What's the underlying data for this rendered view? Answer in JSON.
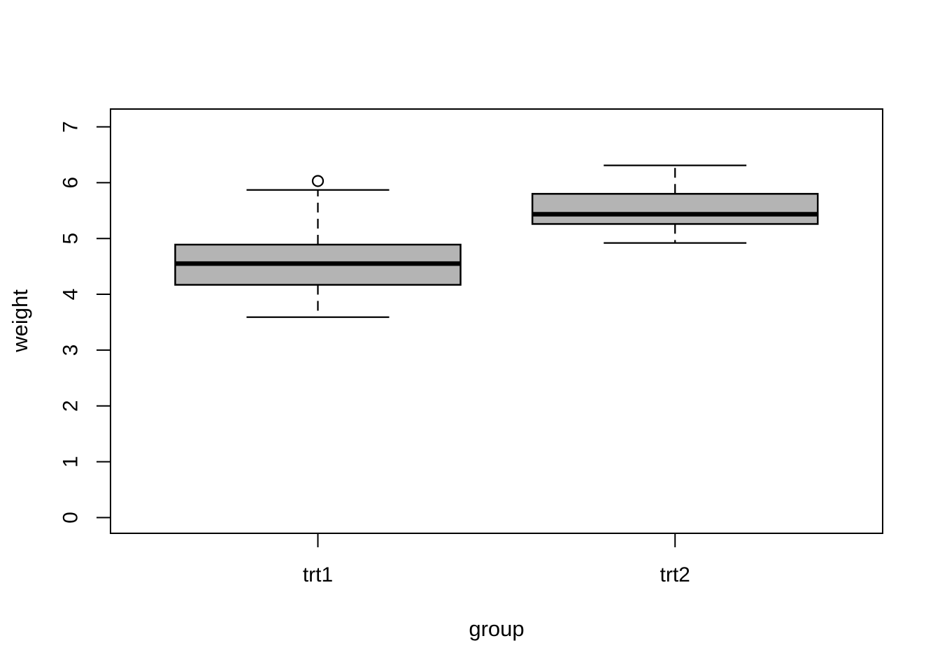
{
  "chart_data": {
    "type": "boxplot",
    "title": "",
    "xlabel": "group",
    "ylabel": "weight",
    "categories": [
      "trt1",
      "trt2"
    ],
    "y_ticks": [
      0,
      1,
      2,
      3,
      4,
      5,
      6,
      7
    ],
    "ylim": [
      0,
      7
    ],
    "grid": "off",
    "legend": "none",
    "series": [
      {
        "group": "trt1",
        "whisker_low": 3.59,
        "q1": 4.17,
        "median": 4.55,
        "q3": 4.89,
        "whisker_high": 5.87,
        "outliers": [
          6.03
        ]
      },
      {
        "group": "trt2",
        "whisker_low": 4.92,
        "q1": 5.26,
        "median": 5.435,
        "q3": 5.8,
        "whisker_high": 6.31,
        "outliers": []
      }
    ],
    "style": {
      "box_fill": "#b4b4b4",
      "stroke": "#000000",
      "background": "#ffffff"
    }
  }
}
